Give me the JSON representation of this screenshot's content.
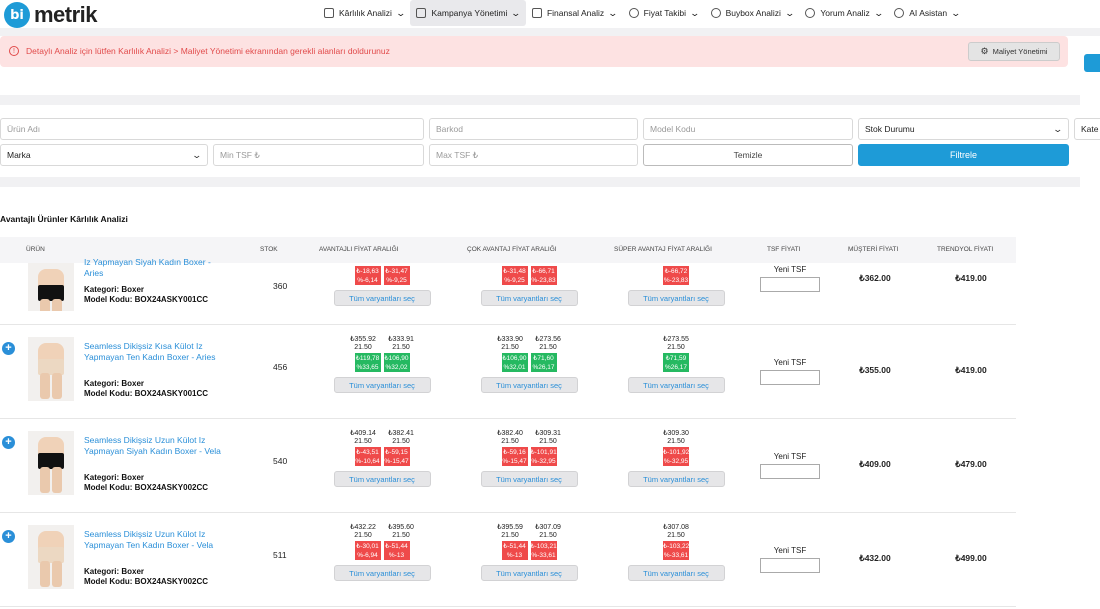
{
  "brand": {
    "logo_mark": "bi",
    "logo_text": "metrik"
  },
  "nav": [
    {
      "label": "Kârlılık Analizi",
      "icon": "chart-icon"
    },
    {
      "label": "Kampanya Yönetimi",
      "icon": "calendar-icon"
    },
    {
      "label": "Finansal Analiz",
      "icon": "finance-icon"
    },
    {
      "label": "Fiyat Takibi",
      "icon": "tag-icon"
    },
    {
      "label": "Buybox Analizi",
      "icon": "trend-icon"
    },
    {
      "label": "Yorum Analiz",
      "icon": "comment-icon"
    },
    {
      "label": "AI Asistan",
      "icon": "ai-icon"
    }
  ],
  "alert": {
    "text": "Detaylı Analiz için lütfen Karlılık Analizi > Maliyet Yönetimi ekranından gerekli alanları doldurunuz",
    "button": "Maliyet Yönetimi"
  },
  "filters": {
    "product_name_placeholder": "Ürün Adı",
    "barcode_placeholder": "Barkod",
    "model_code_placeholder": "Model Kodu",
    "stock_status": "Stok Durumu",
    "category": "Kate",
    "brand": "Marka",
    "min_tsf_placeholder": "Min TSF ₺",
    "max_tsf_placeholder": "Max TSF ₺",
    "clear": "Temizle",
    "filter": "Filtrele"
  },
  "section_title": "Avantajlı Ürünler Kârlılık Analizi",
  "table": {
    "headers": [
      "ÜRÜN",
      "STOK",
      "AVANTAJLI FİYAT ARALIĞI",
      "ÇOK AVANTAJ FİYAT ARALIĞI",
      "SÜPER AVANTAJ FİYAT ARALIĞI",
      "TSF FİYATI",
      "MÜŞTERİ FİYATI",
      "TRENDYOL FİYATI"
    ],
    "select_all_label": "Tüm varyantları seç",
    "tsf_label": "Yeni TSF",
    "rows": [
      {
        "name": "Iz Yapmayan Siyah Kadın Boxer - Aries",
        "category": "Kategori: Boxer",
        "model": "Model Kodu: BOX24ASKY001CC",
        "stock": "360",
        "adv": {
          "prices": [
            "",
            ""
          ],
          "commissions": [
            "",
            ""
          ],
          "boxes": [
            [
              "₺-18,63",
              "%-6,14",
              "r"
            ],
            [
              "₺-31,47",
              "%-9,25",
              "r"
            ]
          ]
        },
        "cok": {
          "prices": [
            "",
            ""
          ],
          "commissions": [
            "",
            ""
          ],
          "boxes": [
            [
              "₺-31,48",
              "%-9,25",
              "r"
            ],
            [
              "₺-66,71",
              "%-23,83",
              "r"
            ]
          ]
        },
        "super": {
          "prices": [
            ""
          ],
          "commissions": [
            ""
          ],
          "boxes": [
            [
              "₺-66,72",
              "%-23,83",
              "r"
            ]
          ]
        },
        "customer_price": "₺362.00",
        "trendyol_price": "₺419.00",
        "color": "#111"
      },
      {
        "name": "Seamless Dikişsiz Kısa Külot Iz Yapmayan Ten Kadın Boxer - Aries",
        "category": "Kategori: Boxer",
        "model": "Model Kodu: BOX24ASKY001CC",
        "stock": "456",
        "adv": {
          "prices": [
            "₺355.92",
            "₺333.91"
          ],
          "commissions": [
            "21.50",
            "21.50"
          ],
          "boxes": [
            [
              "₺119,78",
              "%33,65",
              "g"
            ],
            [
              "₺106,90",
              "%32,02",
              "g"
            ]
          ]
        },
        "cok": {
          "prices": [
            "₺333.90",
            "₺273.56"
          ],
          "commissions": [
            "21.50",
            "21.50"
          ],
          "boxes": [
            [
              "₺106,90",
              "%32,01",
              "g"
            ],
            [
              "₺71,60",
              "%26,17",
              "g"
            ]
          ]
        },
        "super": {
          "prices": [
            "₺273.55"
          ],
          "commissions": [
            "21.50"
          ],
          "boxes": [
            [
              "₺71,59",
              "%26,17",
              "g"
            ]
          ]
        },
        "customer_price": "₺355.00",
        "trendyol_price": "₺419.00",
        "color": "#ecd8c2"
      },
      {
        "name": "Seamless Dikişsiz Uzun Külot Iz Yapmayan Siyah Kadın Boxer - Vela",
        "category": "Kategori: Boxer",
        "model": "Model Kodu: BOX24ASKY002CC",
        "stock": "540",
        "adv": {
          "prices": [
            "₺409.14",
            "₺382.41"
          ],
          "commissions": [
            "21.50",
            "21.50"
          ],
          "boxes": [
            [
              "₺-43,51",
              "%-10,64",
              "r"
            ],
            [
              "₺-59,15",
              "%-15,47",
              "r"
            ]
          ]
        },
        "cok": {
          "prices": [
            "₺382.40",
            "₺309.31"
          ],
          "commissions": [
            "21.50",
            "21.50"
          ],
          "boxes": [
            [
              "₺-59,16",
              "%-15,47",
              "r"
            ],
            [
              "₺-101,91",
              "%-32,95",
              "r"
            ]
          ]
        },
        "super": {
          "prices": [
            "₺309.30"
          ],
          "commissions": [
            "21.50"
          ],
          "boxes": [
            [
              "₺-101,92",
              "%-32,95",
              "r"
            ]
          ]
        },
        "customer_price": "₺409.00",
        "trendyol_price": "₺479.00",
        "color": "#111"
      },
      {
        "name": "Seamless Dikişsiz Uzun Külot Iz Yapmayan Ten Kadın Boxer - Vela",
        "category": "Kategori: Boxer",
        "model": "Model Kodu: BOX24ASKY002CC",
        "stock": "511",
        "adv": {
          "prices": [
            "₺432.22",
            "₺395.60"
          ],
          "commissions": [
            "21.50",
            "21.50"
          ],
          "boxes": [
            [
              "₺-30,01",
              "%-6,94",
              "r"
            ],
            [
              "₺-51,44",
              "%-13",
              "r"
            ]
          ]
        },
        "cok": {
          "prices": [
            "₺395.59",
            "₺307.09"
          ],
          "commissions": [
            "21.50",
            "21.50"
          ],
          "boxes": [
            [
              "₺-51,44",
              "%-13",
              "r"
            ],
            [
              "₺-103,21",
              "%-33,61",
              "r"
            ]
          ]
        },
        "super": {
          "prices": [
            "₺307.08"
          ],
          "commissions": [
            "21.50"
          ],
          "boxes": [
            [
              "₺-103,22",
              "%-33,61",
              "r"
            ]
          ]
        },
        "customer_price": "₺432.00",
        "trendyol_price": "₺499.00",
        "color": "#ecd8c2"
      }
    ]
  }
}
